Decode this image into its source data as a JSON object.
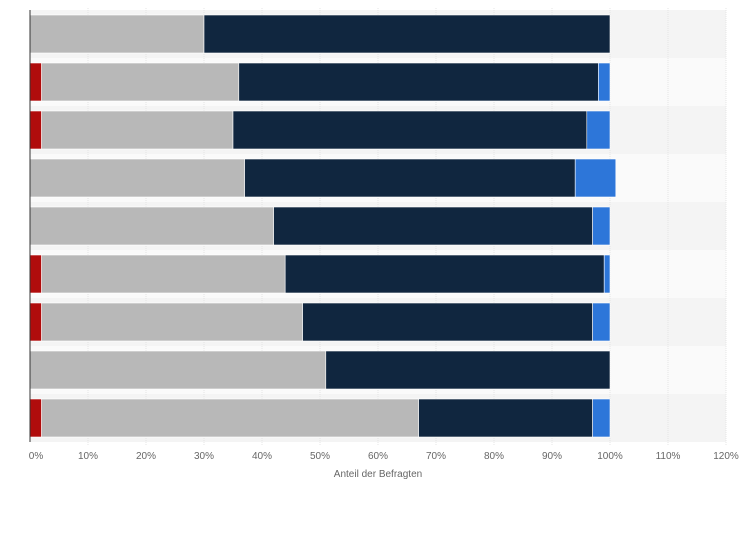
{
  "chart_data": {
    "type": "bar",
    "orientation": "horizontal",
    "stacked": true,
    "xlabel": "Anteil der Befragten",
    "xlim": [
      0,
      120
    ],
    "xticks": [
      "0%",
      "10%",
      "20%",
      "30%",
      "40%",
      "50%",
      "60%",
      "70%",
      "80%",
      "90%",
      "100%",
      "110%",
      "120%"
    ],
    "grid": true,
    "category_count": 9,
    "series": [
      {
        "color": "#b00c0c",
        "values": [
          0,
          2,
          2,
          0,
          0,
          2,
          2,
          0,
          2
        ]
      },
      {
        "color": "#b8b8b8",
        "values": [
          30,
          34,
          33,
          37,
          42,
          42,
          45,
          51,
          65
        ]
      },
      {
        "color": "#10263f",
        "values": [
          70,
          62,
          61,
          57,
          55,
          55,
          50,
          49,
          30
        ]
      },
      {
        "color": "#2d76d9",
        "values": [
          0,
          2,
          4,
          7,
          3,
          1,
          3,
          0,
          3
        ]
      }
    ]
  }
}
